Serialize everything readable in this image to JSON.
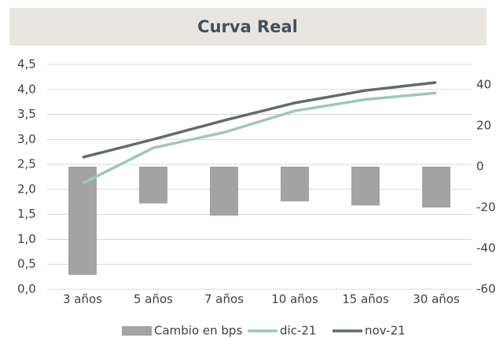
{
  "chart_data": {
    "type": "combo",
    "title": "Curva Real",
    "categories": [
      "3 años",
      "5 años",
      "7 años",
      "10 años",
      "15 años",
      "30 años"
    ],
    "series": [
      {
        "name": "Cambio en bps",
        "type": "bar",
        "axis": "y2",
        "color": "#a3a3a3",
        "values": [
          -53,
          -18,
          -24,
          -17,
          -19,
          -20
        ]
      },
      {
        "name": "dic-21",
        "type": "line",
        "color": "#9ec8b8",
        "values": [
          2.12,
          2.83,
          3.14,
          3.57,
          3.8,
          3.93
        ]
      },
      {
        "name": "nov-21",
        "type": "line",
        "color": "#5f6b73",
        "values": [
          2.64,
          3.0,
          3.38,
          3.73,
          3.98,
          4.14
        ]
      }
    ],
    "ylim": [
      0,
      4.5
    ],
    "yticks": [
      {
        "value": 0,
        "label": "0,0"
      },
      {
        "value": 0.5,
        "label": "0,5"
      },
      {
        "value": 1,
        "label": "1,0"
      },
      {
        "value": 1.5,
        "label": "1,5"
      },
      {
        "value": 2,
        "label": "2,0"
      },
      {
        "value": 2.5,
        "label": "2,5"
      },
      {
        "value": 3,
        "label": "3,0"
      },
      {
        "value": 3.5,
        "label": "3,5"
      },
      {
        "value": 4,
        "label": "4,0"
      },
      {
        "value": 4.5,
        "label": "4,5"
      }
    ],
    "y2lim": [
      -60,
      50
    ],
    "y2ticks": [
      -60,
      -40,
      -20,
      0,
      20,
      40
    ],
    "grid": true,
    "legend": "bottom"
  }
}
